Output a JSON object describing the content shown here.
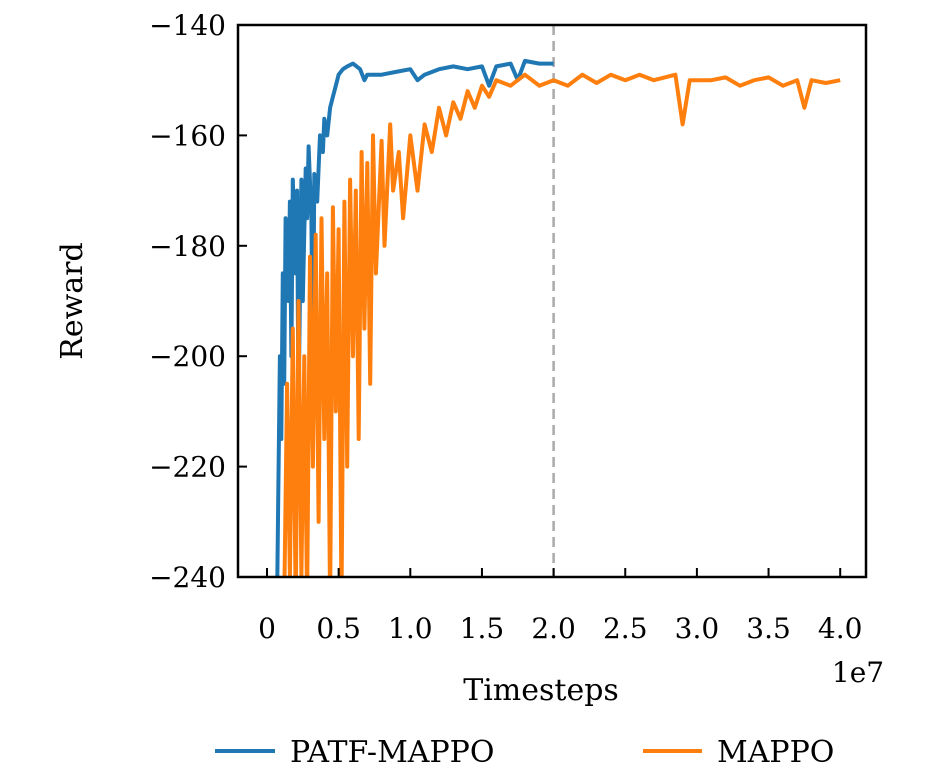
{
  "chart_data": {
    "type": "line",
    "title": "",
    "xlabel": "Timesteps",
    "ylabel": "Reward",
    "x_scale_label": "1e7",
    "xlim": [
      -0.2,
      4.2
    ],
    "ylim": [
      -240,
      -140
    ],
    "xticks": [
      0,
      0.5,
      1.0,
      1.5,
      2.0,
      2.5,
      3.0,
      3.5,
      4.0
    ],
    "xtick_labels": [
      "0",
      "0.5",
      "1.0",
      "1.5",
      "2.0",
      "2.5",
      "3.0",
      "3.5",
      "4.0"
    ],
    "yticks": [
      -240,
      -220,
      -200,
      -180,
      -160,
      -140
    ],
    "ytick_labels": [
      "−240",
      "−220",
      "−200",
      "−180",
      "−160",
      "−140"
    ],
    "grid": false,
    "legend_placement": "bottom",
    "vline": {
      "x": 2.0,
      "style": "dashed",
      "color": "#aaaaaa"
    },
    "series": [
      {
        "name": "PATF-MAPPO",
        "color": "#1f77b4",
        "points": [
          [
            0.07,
            -245
          ],
          [
            0.09,
            -200
          ],
          [
            0.1,
            -215
          ],
          [
            0.11,
            -185
          ],
          [
            0.12,
            -205
          ],
          [
            0.13,
            -175
          ],
          [
            0.15,
            -190
          ],
          [
            0.16,
            -172
          ],
          [
            0.17,
            -200
          ],
          [
            0.18,
            -168
          ],
          [
            0.2,
            -185
          ],
          [
            0.21,
            -170
          ],
          [
            0.22,
            -210
          ],
          [
            0.24,
            -168
          ],
          [
            0.25,
            -190
          ],
          [
            0.27,
            -166
          ],
          [
            0.28,
            -175
          ],
          [
            0.29,
            -162
          ],
          [
            0.31,
            -175
          ],
          [
            0.32,
            -203
          ],
          [
            0.33,
            -167
          ],
          [
            0.35,
            -172
          ],
          [
            0.37,
            -160
          ],
          [
            0.39,
            -163
          ],
          [
            0.4,
            -157
          ],
          [
            0.42,
            -160
          ],
          [
            0.44,
            -155
          ],
          [
            0.46,
            -153
          ],
          [
            0.48,
            -151
          ],
          [
            0.5,
            -149
          ],
          [
            0.53,
            -148
          ],
          [
            0.56,
            -147.5
          ],
          [
            0.6,
            -147
          ],
          [
            0.65,
            -148
          ],
          [
            0.68,
            -150
          ],
          [
            0.7,
            -149
          ],
          [
            0.8,
            -149
          ],
          [
            0.9,
            -148.5
          ],
          [
            1.0,
            -148
          ],
          [
            1.05,
            -150
          ],
          [
            1.1,
            -149
          ],
          [
            1.2,
            -148
          ],
          [
            1.3,
            -147.5
          ],
          [
            1.4,
            -148
          ],
          [
            1.5,
            -147.5
          ],
          [
            1.55,
            -151
          ],
          [
            1.6,
            -147.5
          ],
          [
            1.7,
            -147
          ],
          [
            1.75,
            -150
          ],
          [
            1.8,
            -146.5
          ],
          [
            1.9,
            -147
          ],
          [
            2.0,
            -147
          ]
        ]
      },
      {
        "name": "MAPPO",
        "color": "#ff7f0e",
        "points": [
          [
            0.12,
            -245
          ],
          [
            0.14,
            -205
          ],
          [
            0.16,
            -240
          ],
          [
            0.18,
            -195
          ],
          [
            0.2,
            -245
          ],
          [
            0.22,
            -190
          ],
          [
            0.24,
            -240
          ],
          [
            0.26,
            -200
          ],
          [
            0.28,
            -245
          ],
          [
            0.3,
            -182
          ],
          [
            0.32,
            -220
          ],
          [
            0.34,
            -178
          ],
          [
            0.36,
            -230
          ],
          [
            0.38,
            -175
          ],
          [
            0.4,
            -215
          ],
          [
            0.42,
            -185
          ],
          [
            0.44,
            -245
          ],
          [
            0.46,
            -173
          ],
          [
            0.48,
            -210
          ],
          [
            0.5,
            -177
          ],
          [
            0.52,
            -245
          ],
          [
            0.54,
            -172
          ],
          [
            0.56,
            -220
          ],
          [
            0.58,
            -168
          ],
          [
            0.6,
            -200
          ],
          [
            0.62,
            -170
          ],
          [
            0.64,
            -215
          ],
          [
            0.66,
            -163
          ],
          [
            0.68,
            -195
          ],
          [
            0.7,
            -165
          ],
          [
            0.72,
            -205
          ],
          [
            0.74,
            -160
          ],
          [
            0.76,
            -185
          ],
          [
            0.8,
            -161
          ],
          [
            0.82,
            -180
          ],
          [
            0.86,
            -158
          ],
          [
            0.88,
            -170
          ],
          [
            0.92,
            -163
          ],
          [
            0.95,
            -175
          ],
          [
            1.0,
            -160
          ],
          [
            1.05,
            -170
          ],
          [
            1.1,
            -158
          ],
          [
            1.15,
            -163
          ],
          [
            1.2,
            -155
          ],
          [
            1.25,
            -160
          ],
          [
            1.3,
            -154
          ],
          [
            1.35,
            -157
          ],
          [
            1.4,
            -152
          ],
          [
            1.45,
            -155
          ],
          [
            1.5,
            -151
          ],
          [
            1.55,
            -153
          ],
          [
            1.6,
            -150
          ],
          [
            1.7,
            -151
          ],
          [
            1.8,
            -149
          ],
          [
            1.9,
            -151
          ],
          [
            2.0,
            -150
          ],
          [
            2.1,
            -151
          ],
          [
            2.2,
            -149
          ],
          [
            2.3,
            -150.5
          ],
          [
            2.4,
            -149
          ],
          [
            2.5,
            -150
          ],
          [
            2.6,
            -149
          ],
          [
            2.7,
            -150
          ],
          [
            2.85,
            -149
          ],
          [
            2.9,
            -158
          ],
          [
            2.95,
            -150
          ],
          [
            3.1,
            -150
          ],
          [
            3.2,
            -149.5
          ],
          [
            3.3,
            -151
          ],
          [
            3.4,
            -150
          ],
          [
            3.5,
            -149.5
          ],
          [
            3.6,
            -151
          ],
          [
            3.7,
            -150
          ],
          [
            3.75,
            -155
          ],
          [
            3.8,
            -150
          ],
          [
            3.9,
            -150.5
          ],
          [
            4.0,
            -150
          ]
        ]
      }
    ]
  }
}
